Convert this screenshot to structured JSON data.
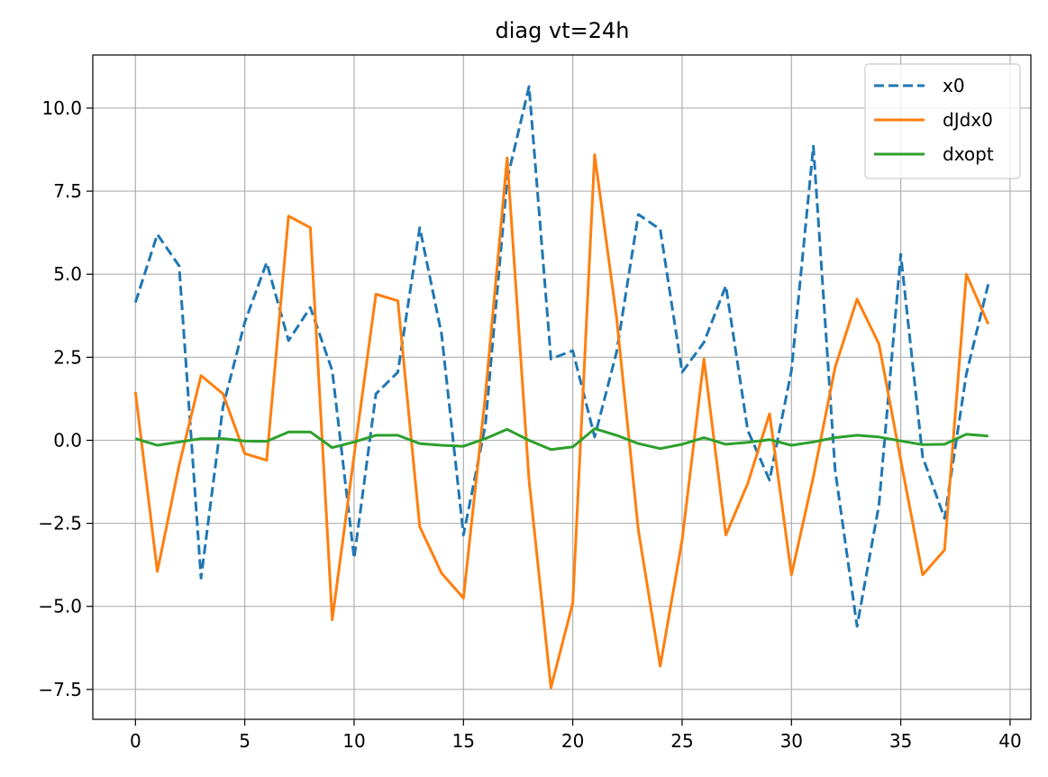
{
  "chart_data": {
    "type": "line",
    "title": "diag vt=24h",
    "xlabel": "",
    "ylabel": "",
    "xlim": [
      -1.95,
      40.95
    ],
    "ylim": [
      -8.4,
      11.6
    ],
    "grid": true,
    "legend_position": "top-right",
    "x_ticks": [
      0,
      5,
      10,
      15,
      20,
      25,
      30,
      35,
      40
    ],
    "x_tick_labels": [
      "0",
      "5",
      "10",
      "15",
      "20",
      "25",
      "30",
      "35",
      "40"
    ],
    "y_ticks": [
      -7.5,
      -5.0,
      -2.5,
      0.0,
      2.5,
      5.0,
      7.5,
      10.0
    ],
    "y_tick_labels": [
      "−7.5",
      "−5.0",
      "−2.5",
      "0.0",
      "2.5",
      "5.0",
      "7.5",
      "10.0"
    ],
    "x": [
      0,
      1,
      2,
      3,
      4,
      5,
      6,
      7,
      8,
      9,
      10,
      11,
      12,
      13,
      14,
      15,
      16,
      17,
      18,
      19,
      20,
      21,
      22,
      23,
      24,
      25,
      26,
      27,
      28,
      29,
      30,
      31,
      32,
      33,
      34,
      35,
      36,
      37,
      38,
      39
    ],
    "series": [
      {
        "name": "x0",
        "color": "#1f77b4",
        "style": "dashed",
        "values": [
          4.15,
          6.2,
          5.25,
          -4.15,
          1.0,
          3.55,
          5.35,
          3.0,
          4.0,
          2.1,
          -3.55,
          1.4,
          2.05,
          6.4,
          3.2,
          -2.85,
          0.45,
          7.85,
          10.65,
          2.45,
          2.7,
          0.1,
          2.65,
          6.8,
          6.35,
          2.05,
          2.95,
          4.65,
          0.3,
          -1.2,
          2.1,
          8.85,
          -0.9,
          -5.6,
          -1.95,
          5.6,
          -0.5,
          -2.35,
          2.0,
          4.7
        ]
      },
      {
        "name": "dJdx0",
        "color": "#ff7f0e",
        "style": "solid",
        "values": [
          1.45,
          -3.95,
          -0.75,
          1.95,
          1.4,
          -0.4,
          -0.6,
          6.75,
          6.4,
          -5.4,
          -0.45,
          4.4,
          4.2,
          -2.6,
          -4.0,
          -4.75,
          1.35,
          8.5,
          -1.2,
          -7.45,
          -4.9,
          8.6,
          3.7,
          -2.7,
          -6.8,
          -3.0,
          2.45,
          -2.85,
          -1.3,
          0.8,
          -4.05,
          -1.1,
          2.2,
          4.25,
          2.9,
          -0.6,
          -4.05,
          -3.3,
          5.0,
          3.5
        ]
      },
      {
        "name": "dxopt",
        "color": "#2ca02c",
        "style": "solid",
        "values": [
          0.05,
          -0.15,
          -0.05,
          0.05,
          0.05,
          -0.02,
          -0.03,
          0.25,
          0.25,
          -0.22,
          -0.05,
          0.15,
          0.15,
          -0.1,
          -0.15,
          -0.18,
          0.05,
          0.33,
          0.0,
          -0.28,
          -0.2,
          0.35,
          0.15,
          -0.1,
          -0.25,
          -0.12,
          0.08,
          -0.12,
          -0.06,
          0.02,
          -0.15,
          -0.05,
          0.08,
          0.15,
          0.1,
          -0.02,
          -0.13,
          -0.12,
          0.18,
          0.13
        ]
      }
    ]
  }
}
